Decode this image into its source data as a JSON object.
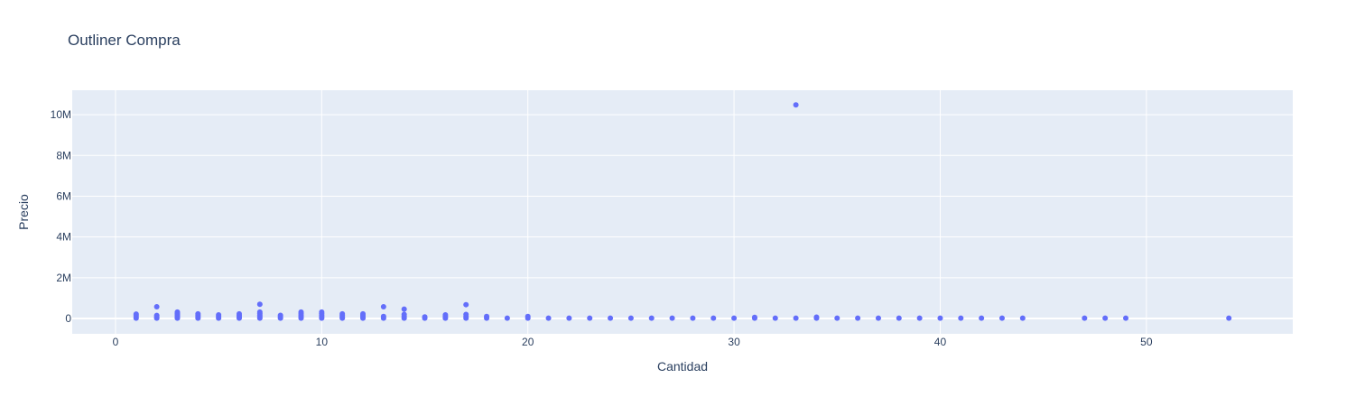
{
  "chart_data": {
    "type": "scatter",
    "title": "Outliner Compra",
    "xlabel": "Cantidad",
    "ylabel": "Precio",
    "xlim": [
      -2.1,
      57.1
    ],
    "ylim": [
      -750000,
      11200000
    ],
    "x_ticks": [
      0,
      10,
      20,
      30,
      40,
      50
    ],
    "x_tick_labels": [
      "0",
      "10",
      "20",
      "30",
      "40",
      "50"
    ],
    "y_ticks": [
      0,
      2000000,
      4000000,
      6000000,
      8000000,
      10000000
    ],
    "y_tick_labels": [
      "0",
      "2M",
      "4M",
      "6M",
      "8M",
      "10M"
    ],
    "grid": true,
    "legend": "none",
    "colors": {
      "plot_bg": "#e5ecf6",
      "marker": "#636efa",
      "grid": "#ffffff",
      "text": "#2a3f5f"
    },
    "points": [
      {
        "x": 1,
        "y": 20000
      },
      {
        "x": 1,
        "y": 90000
      },
      {
        "x": 1,
        "y": 160000
      },
      {
        "x": 1,
        "y": 220000
      },
      {
        "x": 2,
        "y": 20000
      },
      {
        "x": 2,
        "y": 80000
      },
      {
        "x": 2,
        "y": 150000
      },
      {
        "x": 2,
        "y": 580000
      },
      {
        "x": 3,
        "y": 20000
      },
      {
        "x": 3,
        "y": 80000
      },
      {
        "x": 3,
        "y": 140000
      },
      {
        "x": 3,
        "y": 200000
      },
      {
        "x": 3,
        "y": 260000
      },
      {
        "x": 3,
        "y": 320000
      },
      {
        "x": 4,
        "y": 20000
      },
      {
        "x": 4,
        "y": 90000
      },
      {
        "x": 4,
        "y": 160000
      },
      {
        "x": 4,
        "y": 230000
      },
      {
        "x": 5,
        "y": 20000
      },
      {
        "x": 5,
        "y": 100000
      },
      {
        "x": 5,
        "y": 180000
      },
      {
        "x": 6,
        "y": 20000
      },
      {
        "x": 6,
        "y": 80000
      },
      {
        "x": 6,
        "y": 150000
      },
      {
        "x": 6,
        "y": 230000
      },
      {
        "x": 7,
        "y": 20000
      },
      {
        "x": 7,
        "y": 90000
      },
      {
        "x": 7,
        "y": 160000
      },
      {
        "x": 7,
        "y": 240000
      },
      {
        "x": 7,
        "y": 320000
      },
      {
        "x": 7,
        "y": 700000
      },
      {
        "x": 8,
        "y": 20000
      },
      {
        "x": 8,
        "y": 90000
      },
      {
        "x": 8,
        "y": 160000
      },
      {
        "x": 9,
        "y": 20000
      },
      {
        "x": 9,
        "y": 90000
      },
      {
        "x": 9,
        "y": 160000
      },
      {
        "x": 9,
        "y": 240000
      },
      {
        "x": 9,
        "y": 320000
      },
      {
        "x": 10,
        "y": 20000
      },
      {
        "x": 10,
        "y": 90000
      },
      {
        "x": 10,
        "y": 160000
      },
      {
        "x": 10,
        "y": 240000
      },
      {
        "x": 10,
        "y": 320000
      },
      {
        "x": 11,
        "y": 20000
      },
      {
        "x": 11,
        "y": 80000
      },
      {
        "x": 11,
        "y": 150000
      },
      {
        "x": 11,
        "y": 230000
      },
      {
        "x": 12,
        "y": 20000
      },
      {
        "x": 12,
        "y": 90000
      },
      {
        "x": 12,
        "y": 160000
      },
      {
        "x": 12,
        "y": 230000
      },
      {
        "x": 13,
        "y": 20000
      },
      {
        "x": 13,
        "y": 100000
      },
      {
        "x": 13,
        "y": 580000
      },
      {
        "x": 14,
        "y": 20000
      },
      {
        "x": 14,
        "y": 100000
      },
      {
        "x": 14,
        "y": 200000
      },
      {
        "x": 14,
        "y": 460000
      },
      {
        "x": 15,
        "y": 20000
      },
      {
        "x": 15,
        "y": 80000
      },
      {
        "x": 16,
        "y": 20000
      },
      {
        "x": 16,
        "y": 100000
      },
      {
        "x": 16,
        "y": 180000
      },
      {
        "x": 17,
        "y": 20000
      },
      {
        "x": 17,
        "y": 100000
      },
      {
        "x": 17,
        "y": 200000
      },
      {
        "x": 17,
        "y": 680000
      },
      {
        "x": 18,
        "y": 20000
      },
      {
        "x": 18,
        "y": 100000
      },
      {
        "x": 19,
        "y": 20000
      },
      {
        "x": 20,
        "y": 20000
      },
      {
        "x": 20,
        "y": 100000
      },
      {
        "x": 21,
        "y": 20000
      },
      {
        "x": 22,
        "y": 20000
      },
      {
        "x": 23,
        "y": 20000
      },
      {
        "x": 24,
        "y": 20000
      },
      {
        "x": 25,
        "y": 20000
      },
      {
        "x": 26,
        "y": 20000
      },
      {
        "x": 27,
        "y": 20000
      },
      {
        "x": 28,
        "y": 20000
      },
      {
        "x": 29,
        "y": 20000
      },
      {
        "x": 30,
        "y": 20000
      },
      {
        "x": 31,
        "y": 20000
      },
      {
        "x": 31,
        "y": 60000
      },
      {
        "x": 32,
        "y": 20000
      },
      {
        "x": 33,
        "y": 20000
      },
      {
        "x": 33,
        "y": 10480000
      },
      {
        "x": 34,
        "y": 20000
      },
      {
        "x": 34,
        "y": 70000
      },
      {
        "x": 35,
        "y": 20000
      },
      {
        "x": 36,
        "y": 20000
      },
      {
        "x": 37,
        "y": 20000
      },
      {
        "x": 38,
        "y": 20000
      },
      {
        "x": 39,
        "y": 20000
      },
      {
        "x": 40,
        "y": 20000
      },
      {
        "x": 41,
        "y": 20000
      },
      {
        "x": 42,
        "y": 20000
      },
      {
        "x": 43,
        "y": 20000
      },
      {
        "x": 44,
        "y": 20000
      },
      {
        "x": 47,
        "y": 20000
      },
      {
        "x": 48,
        "y": 20000
      },
      {
        "x": 49,
        "y": 20000
      },
      {
        "x": 54,
        "y": 20000
      }
    ]
  }
}
